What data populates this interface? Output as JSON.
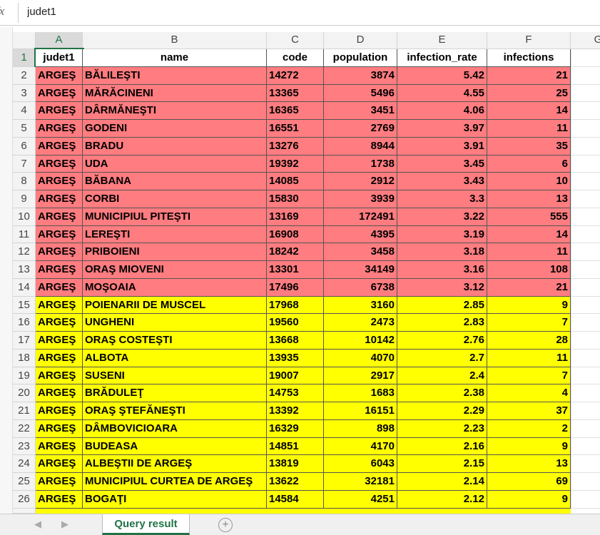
{
  "formula_bar": {
    "icon": "fx",
    "value": "judet1"
  },
  "sheet": {
    "columns": [
      "A",
      "B",
      "C",
      "D",
      "E",
      "F",
      "G"
    ],
    "header": {
      "number": 1,
      "cells": [
        "judet1",
        "name",
        "code",
        "population",
        "infection_rate",
        "infections"
      ]
    },
    "rows": [
      {
        "number": 2,
        "fill": "#ff7c80",
        "cells": [
          "ARGEŞ",
          "BĂLILEŞTI",
          14272,
          3874,
          5.42,
          21
        ]
      },
      {
        "number": 3,
        "fill": "#ff7c80",
        "cells": [
          "ARGEŞ",
          "MĂRĂCINENI",
          13365,
          5496,
          4.55,
          25
        ]
      },
      {
        "number": 4,
        "fill": "#ff7c80",
        "cells": [
          "ARGEŞ",
          "DÂRMĂNEŞTI",
          16365,
          3451,
          4.06,
          14
        ]
      },
      {
        "number": 5,
        "fill": "#ff7c80",
        "cells": [
          "ARGEŞ",
          "GODENI",
          16551,
          2769,
          3.97,
          11
        ]
      },
      {
        "number": 6,
        "fill": "#ff7c80",
        "cells": [
          "ARGEŞ",
          "BRADU",
          13276,
          8944,
          3.91,
          35
        ]
      },
      {
        "number": 7,
        "fill": "#ff7c80",
        "cells": [
          "ARGEŞ",
          "UDA",
          19392,
          1738,
          3.45,
          6
        ]
      },
      {
        "number": 8,
        "fill": "#ff7c80",
        "cells": [
          "ARGEŞ",
          "BĂBANA",
          14085,
          2912,
          3.43,
          10
        ]
      },
      {
        "number": 9,
        "fill": "#ff7c80",
        "cells": [
          "ARGEŞ",
          "CORBI",
          15830,
          3939,
          3.3,
          13
        ]
      },
      {
        "number": 10,
        "fill": "#ff7c80",
        "cells": [
          "ARGEŞ",
          "MUNICIPIUL PITEŞTI",
          13169,
          172491,
          3.22,
          555
        ]
      },
      {
        "number": 11,
        "fill": "#ff7c80",
        "cells": [
          "ARGEŞ",
          "LEREŞTI",
          16908,
          4395,
          3.19,
          14
        ]
      },
      {
        "number": 12,
        "fill": "#ff7c80",
        "cells": [
          "ARGEŞ",
          "PRIBOIENI",
          18242,
          3458,
          3.18,
          11
        ]
      },
      {
        "number": 13,
        "fill": "#ff7c80",
        "cells": [
          "ARGEŞ",
          "ORAŞ MIOVENI",
          13301,
          34149,
          3.16,
          108
        ]
      },
      {
        "number": 14,
        "fill": "#ff7c80",
        "cells": [
          "ARGEŞ",
          "MOŞOAIA",
          17496,
          6738,
          3.12,
          21
        ]
      },
      {
        "number": 15,
        "fill": "#ffff00",
        "cells": [
          "ARGEŞ",
          "POIENARII DE MUSCEL",
          17968,
          3160,
          2.85,
          9
        ]
      },
      {
        "number": 16,
        "fill": "#ffff00",
        "cells": [
          "ARGEŞ",
          "UNGHENI",
          19560,
          2473,
          2.83,
          7
        ]
      },
      {
        "number": 17,
        "fill": "#ffff00",
        "cells": [
          "ARGEŞ",
          "ORAŞ COSTEŞTI",
          13668,
          10142,
          2.76,
          28
        ]
      },
      {
        "number": 18,
        "fill": "#ffff00",
        "cells": [
          "ARGEŞ",
          "ALBOTA",
          13935,
          4070,
          2.7,
          11
        ]
      },
      {
        "number": 19,
        "fill": "#ffff00",
        "cells": [
          "ARGEŞ",
          "SUSENI",
          19007,
          2917,
          2.4,
          7
        ]
      },
      {
        "number": 20,
        "fill": "#ffff00",
        "cells": [
          "ARGEŞ",
          "BRĂDULEŢ",
          14753,
          1683,
          2.38,
          4
        ]
      },
      {
        "number": 21,
        "fill": "#ffff00",
        "cells": [
          "ARGEŞ",
          "ORAŞ ŞTEFĂNEŞTI",
          13392,
          16151,
          2.29,
          37
        ]
      },
      {
        "number": 22,
        "fill": "#ffff00",
        "cells": [
          "ARGEŞ",
          "DÂMBOVICIOARA",
          16329,
          898,
          2.23,
          2
        ]
      },
      {
        "number": 23,
        "fill": "#ffff00",
        "cells": [
          "ARGEŞ",
          "BUDEASA",
          14851,
          4170,
          2.16,
          9
        ]
      },
      {
        "number": 24,
        "fill": "#ffff00",
        "cells": [
          "ARGEŞ",
          "ALBEŞTII DE ARGEŞ",
          13819,
          6043,
          2.15,
          13
        ]
      },
      {
        "number": 25,
        "fill": "#ffff00",
        "cells": [
          "ARGEŞ",
          "MUNICIPIUL CURTEA DE ARGEŞ",
          13622,
          32181,
          2.14,
          69
        ]
      },
      {
        "number": 26,
        "fill": "#ffff00",
        "cells": [
          "ARGEŞ",
          "BOGAŢI",
          14584,
          4251,
          2.12,
          9
        ]
      }
    ]
  },
  "tabs": {
    "active": "Query result"
  }
}
